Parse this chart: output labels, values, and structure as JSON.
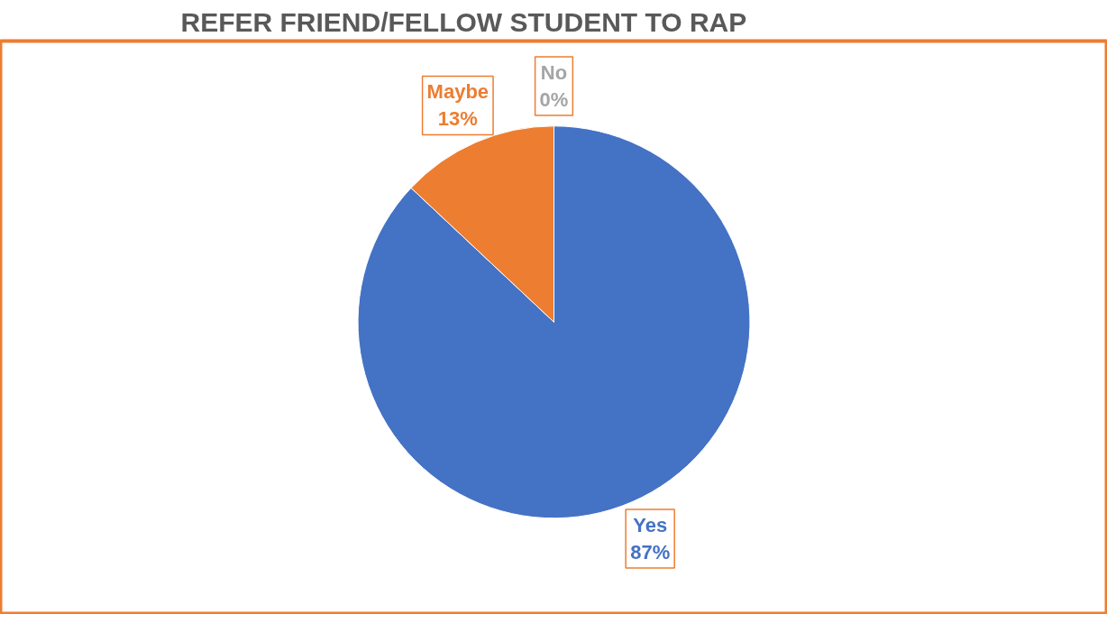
{
  "chart_data": {
    "type": "pie",
    "title": "REFER FRIEND/FELLOW STUDENT TO RAP",
    "categories": [
      "Yes",
      "Maybe",
      "No"
    ],
    "values": [
      87,
      13,
      0
    ],
    "colors": [
      "#4472c4",
      "#ed7d31",
      "#a5a5a5"
    ],
    "value_labels": [
      "87%",
      "13%",
      "0%"
    ]
  }
}
